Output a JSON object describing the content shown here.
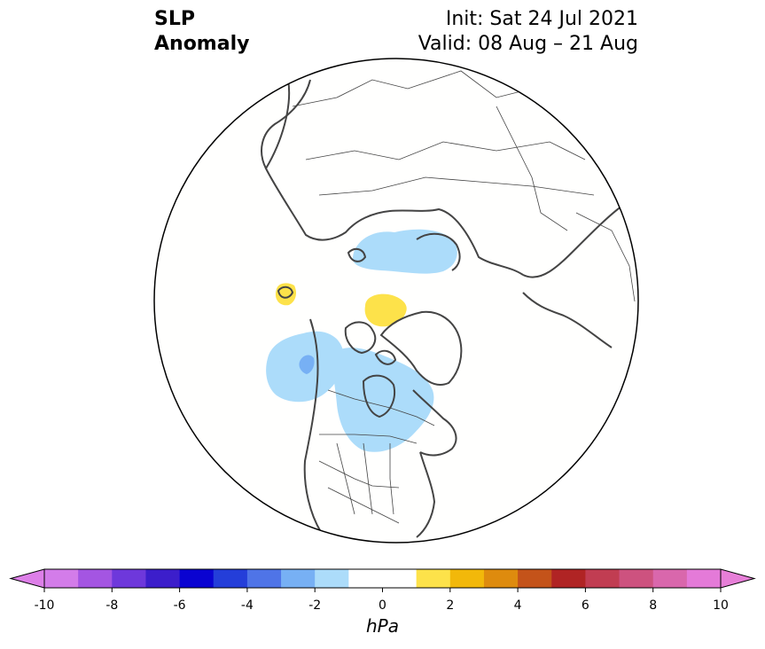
{
  "title": {
    "variable_line1": "SLP",
    "variable_line2": "Anomaly",
    "init": "Init: Sat 24 Jul 2021",
    "valid": "Valid: 08 Aug – 21 Aug"
  },
  "map": {
    "projection": "north-polar-stereographic",
    "anomaly_regions": [
      {
        "location": "Eurasian Arctic coast / Kara-Laptev",
        "level": -1.5,
        "color": "#acdcfa"
      },
      {
        "location": "central Arctic",
        "level": 1.5,
        "color": "#fde24a"
      },
      {
        "location": "near Iceland",
        "level": 1.5,
        "color": "#fde24a"
      },
      {
        "location": "Gulf of Alaska",
        "level": -1.5,
        "color": "#acdcfa"
      },
      {
        "location": "Gulf of Alaska core",
        "level": -2.5,
        "color": "#77b0f4"
      },
      {
        "location": "Canada / Hudson Bay",
        "level": -1.5,
        "color": "#acdcfa"
      }
    ]
  },
  "colorbar": {
    "unit": "hPa",
    "ticks": [
      "-10",
      "-8",
      "-6",
      "-4",
      "-2",
      "0",
      "2",
      "4",
      "6",
      "8",
      "10"
    ],
    "colors": [
      "#d37ce9",
      "#a455e2",
      "#6e38db",
      "#3c1ecb",
      "#0a03d1",
      "#243ed9",
      "#4f74e7",
      "#77b0f4",
      "#acdcfa",
      "#ffffff",
      "#ffffff",
      "#fde24a",
      "#f2b80a",
      "#de8b0e",
      "#c4531a",
      "#b02424",
      "#c13d52",
      "#cd527f",
      "#d967ac",
      "#e47ad8"
    ],
    "extend_min_color": "#dd7fe8",
    "extend_max_color": "#e77fd8"
  }
}
